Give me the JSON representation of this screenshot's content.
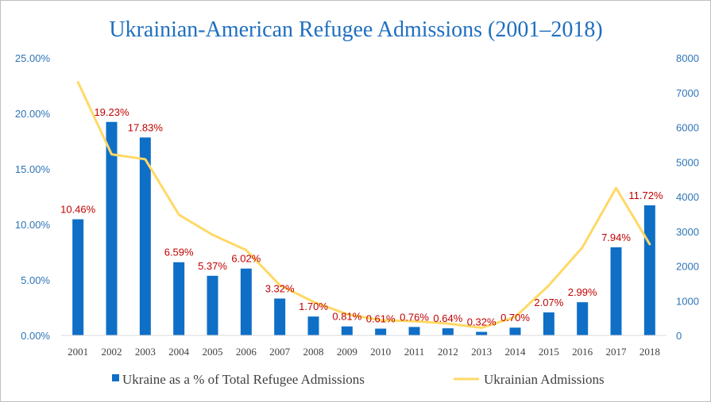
{
  "chart_data": {
    "type": "bar+line",
    "title": "Ukrainian-American Refugee Admissions (2001–2018)",
    "categories": [
      "2001",
      "2002",
      "2003",
      "2004",
      "2005",
      "2006",
      "2007",
      "2008",
      "2009",
      "2010",
      "2011",
      "2012",
      "2013",
      "2014",
      "2015",
      "2016",
      "2017",
      "2018"
    ],
    "series": [
      {
        "name": "Ukraine as a % of Total Refugee Admissions",
        "type": "bar",
        "axis": "left",
        "color": "#0f6fc6",
        "values": [
          10.46,
          19.23,
          17.83,
          6.59,
          5.37,
          6.02,
          3.32,
          1.7,
          0.81,
          0.61,
          0.76,
          0.64,
          0.32,
          0.7,
          2.07,
          2.99,
          7.94,
          11.72
        ],
        "labels": [
          "10.46%",
          "19.23%",
          "17.83%",
          "6.59%",
          "5.37%",
          "6.02%",
          "3.32%",
          "1.70%",
          "0.81%",
          "0.61%",
          "0.76%",
          "0.64%",
          "0.32%",
          "0.70%",
          "2.07%",
          "2.99%",
          "7.94%",
          "11.72%"
        ]
      },
      {
        "name": "Ukrainian Admissions",
        "type": "line",
        "axis": "right",
        "color": "#ffd966",
        "values": [
          7300,
          5220,
          5080,
          3480,
          2900,
          2460,
          1450,
          970,
          610,
          440,
          410,
          340,
          220,
          530,
          1440,
          2540,
          4250,
          2630
        ]
      }
    ],
    "y_left": {
      "min": 0,
      "max": 25,
      "ticks": [
        "0.00%",
        "5.00%",
        "10.00%",
        "15.00%",
        "20.00%",
        "25.00%"
      ]
    },
    "y_right": {
      "min": 0,
      "max": 8000,
      "ticks": [
        "0",
        "1000",
        "2000",
        "3000",
        "4000",
        "5000",
        "6000",
        "7000",
        "8000"
      ]
    },
    "grid": false,
    "legend_position": "bottom"
  },
  "colors": {
    "title": "#1f6fbf",
    "axis_ticks": "#2e75b6",
    "data_labels": "#c00000",
    "bar": "#0f6fc6",
    "line": "#ffd966"
  }
}
